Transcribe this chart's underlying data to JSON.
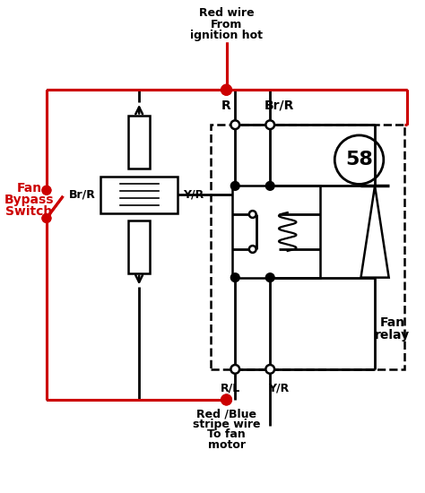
{
  "bg_color": "#ffffff",
  "red": "#cc0000",
  "blk": "#000000",
  "top_label": [
    "Red wire",
    "From",
    "ignition hot"
  ],
  "bottom_label": [
    "Red /Blue",
    "stripe wire",
    "To fan",
    "motor"
  ],
  "fan_bypass_label": [
    "Fan",
    "Bypass",
    "Switch"
  ],
  "fan_relay_label": [
    "Fan",
    "relay"
  ],
  "relay_number": "58",
  "fig_w": 4.74,
  "fig_h": 5.5,
  "dpi": 100
}
